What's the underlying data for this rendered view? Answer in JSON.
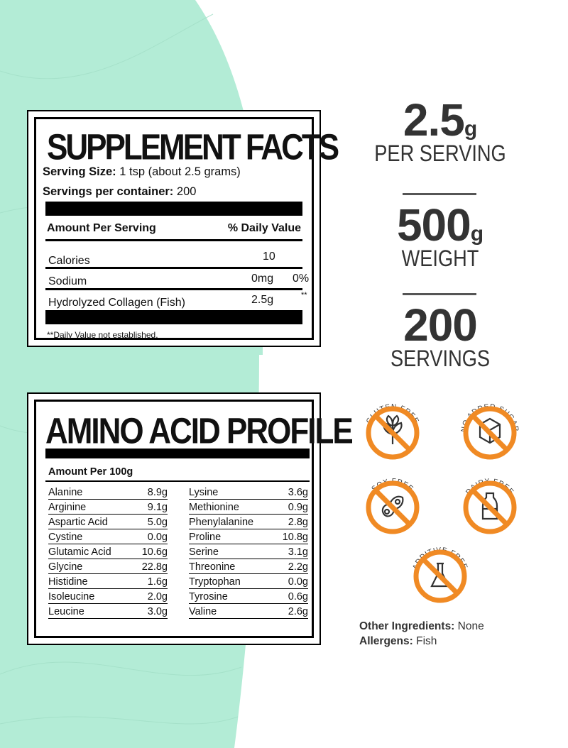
{
  "supplement_facts": {
    "title": "SUPPLEMENT FACTS",
    "serving_size_label": "Serving Size:",
    "serving_size_value": "1 tsp (about 2.5 grams)",
    "servings_label": "Servings per container:",
    "servings_value": "200",
    "header_left": "Amount Per Serving",
    "header_right": "% Daily Value",
    "rows": [
      {
        "name": "Calories",
        "amount": "10",
        "dv": ""
      },
      {
        "name": "Sodium",
        "amount": "0mg",
        "dv": "0%"
      },
      {
        "name": "Hydrolyzed Collagen (Fish)",
        "amount": "2.5g",
        "dv": "**"
      }
    ],
    "footnote": "**Daily Value not established."
  },
  "amino_profile": {
    "title": "AMINO ACID PROFILE",
    "header": "Amount Per 100g",
    "left": [
      [
        "Alanine",
        "8.9g"
      ],
      [
        "Arginine",
        "9.1g"
      ],
      [
        "Aspartic Acid",
        "5.0g"
      ],
      [
        "Cystine",
        "0.0g"
      ],
      [
        "Glutamic Acid",
        "10.6g"
      ],
      [
        "Glycine",
        "22.8g"
      ],
      [
        "Histidine",
        "1.6g"
      ],
      [
        "Isoleucine",
        "2.0g"
      ],
      [
        "Leucine",
        "3.0g"
      ]
    ],
    "right": [
      [
        "Lysine",
        "3.6g"
      ],
      [
        "Methionine",
        "0.9g"
      ],
      [
        "Phenylalanine",
        "2.8g"
      ],
      [
        "Proline",
        "10.8g"
      ],
      [
        "Serine",
        "3.1g"
      ],
      [
        "Threonine",
        "2.2g"
      ],
      [
        "Tryptophan",
        "0.0g"
      ],
      [
        "Tyrosine",
        "0.6g"
      ],
      [
        "Valine",
        "2.6g"
      ]
    ]
  },
  "highlights": [
    {
      "number": "2.5",
      "unit": "g",
      "label": "PER SERVING"
    },
    {
      "number": "500",
      "unit": "g",
      "label": "WEIGHT"
    },
    {
      "number": "200",
      "unit": "",
      "label": "SERVINGS"
    }
  ],
  "badges": [
    {
      "label": "GLUTEN FREE",
      "icon": "wheat-icon"
    },
    {
      "label": "NO ADDED SUGAR",
      "icon": "sugar-cube-icon"
    },
    {
      "label": "SOY FREE",
      "icon": "soybean-icon"
    },
    {
      "label": "DAIRY FREE",
      "icon": "milk-bottle-icon"
    },
    {
      "label": "ADDITIVE FREE",
      "icon": "flask-icon"
    }
  ],
  "other_ingredients": {
    "label": "Other Ingredients:",
    "value": "None"
  },
  "allergens": {
    "label": "Allergens:",
    "value": "Fish"
  },
  "colors": {
    "mint": "#b3ecd6",
    "badge_orange": "#f08a24",
    "text_gray": "#333333"
  }
}
